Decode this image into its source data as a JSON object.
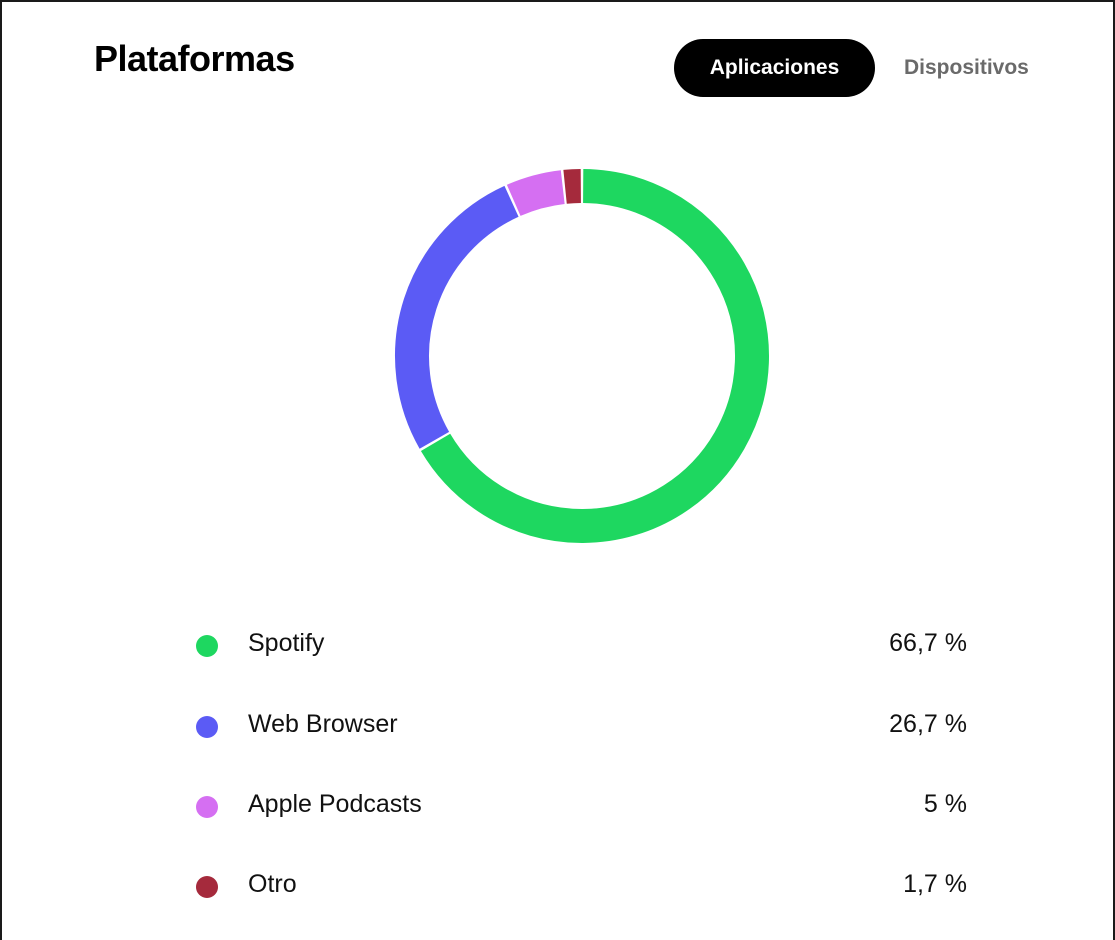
{
  "header": {
    "title": "Plataformas",
    "tabs": [
      {
        "label": "Aplicaciones",
        "active": true
      },
      {
        "label": "Dispositivos",
        "active": false
      }
    ]
  },
  "chart_data": {
    "type": "pie",
    "donut": true,
    "title": "",
    "categories": [
      "Spotify",
      "Web Browser",
      "Apple Podcasts",
      "Otro"
    ],
    "values": [
      66.7,
      26.7,
      5,
      1.7
    ],
    "value_labels": [
      "66,7 %",
      "26,7 %",
      "5 %",
      "1,7 %"
    ],
    "colors": [
      "#1ed760",
      "#5b5bf5",
      "#d56ff2",
      "#a52a3c"
    ],
    "legend_placement": "bottom"
  }
}
